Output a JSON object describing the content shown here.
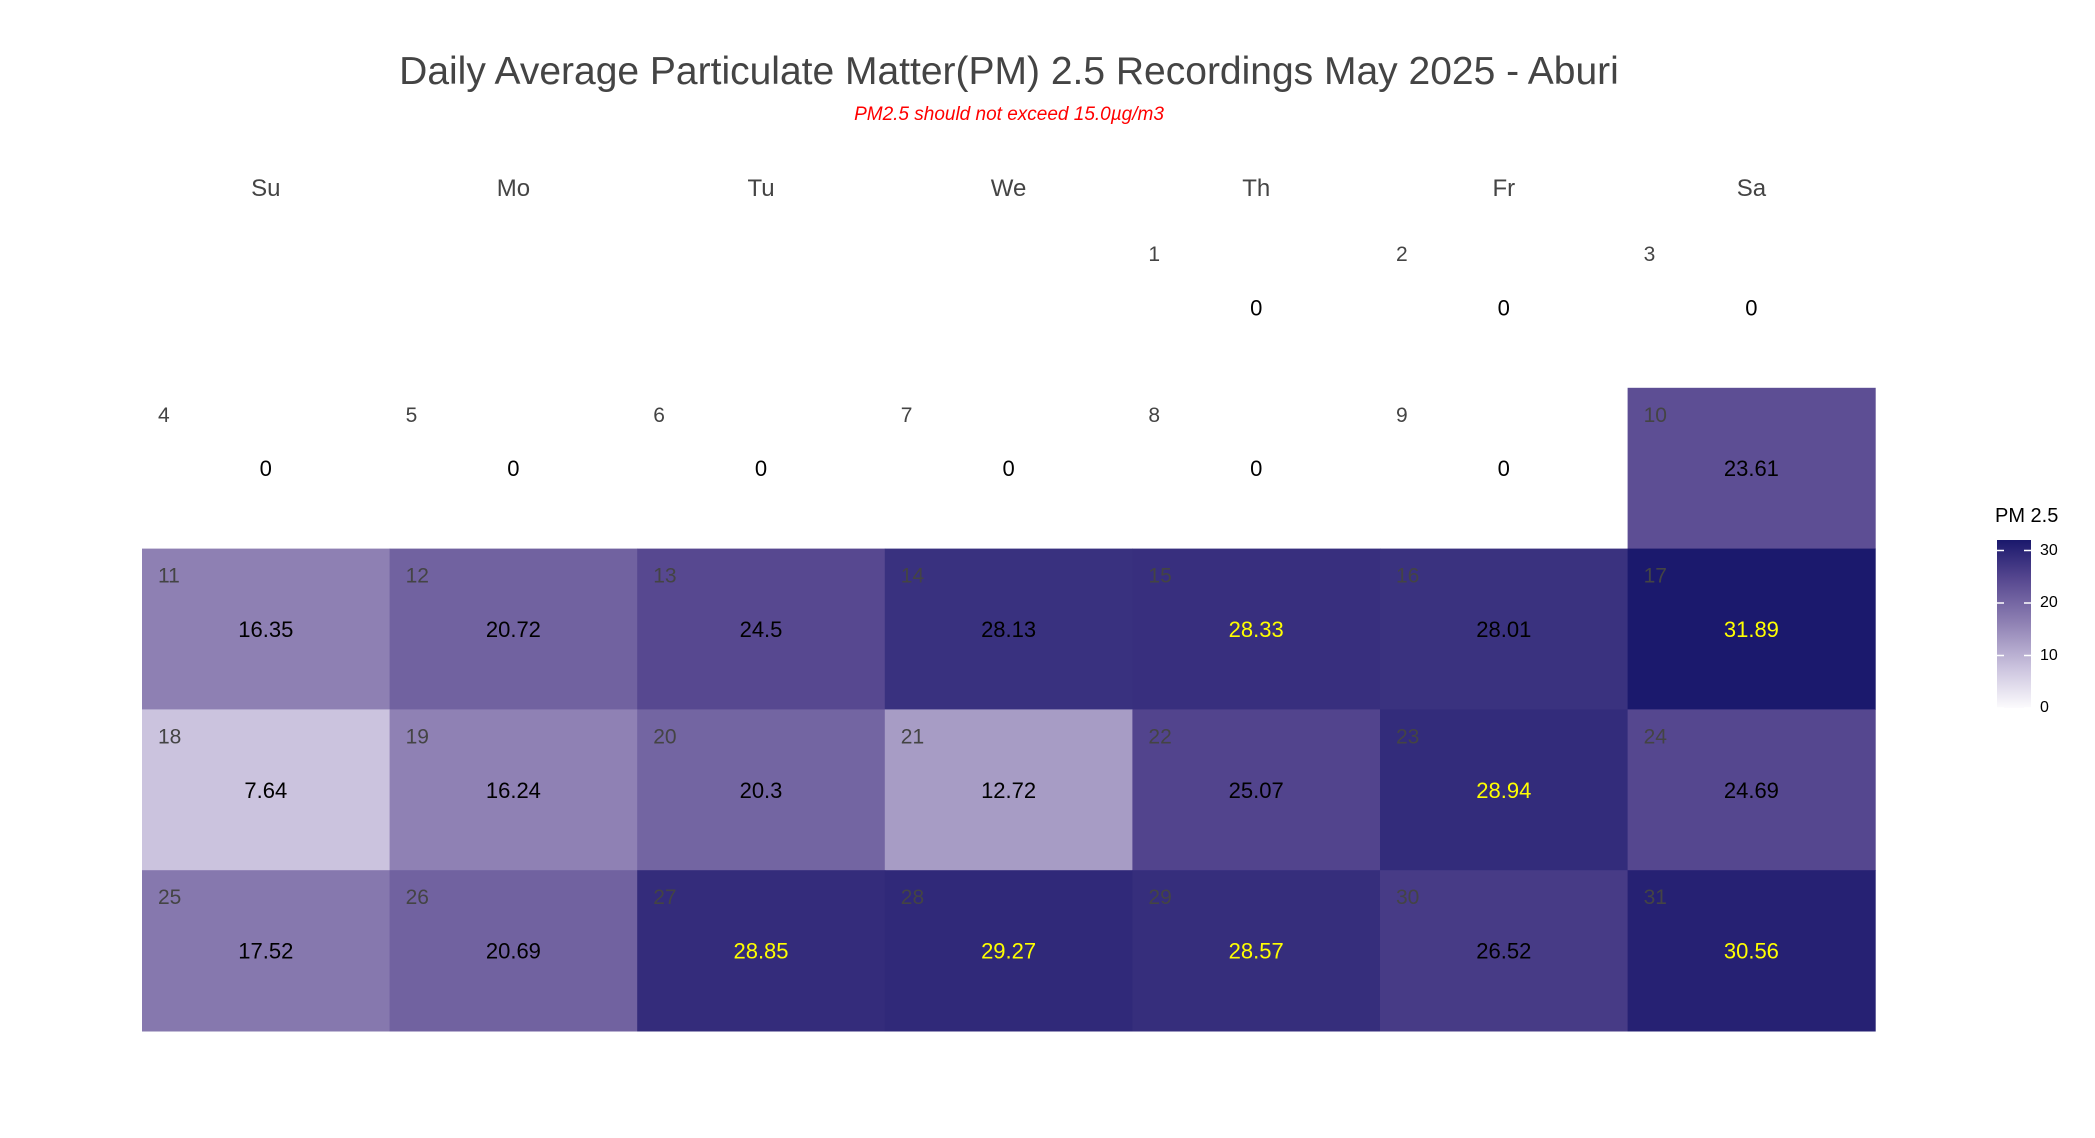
{
  "chart_data": {
    "type": "heatmap",
    "title": "Daily Average Particulate Matter(PM) 2.5 Recordings May 2025 -  Aburi",
    "subtitle": "PM2.5 should not exceed 15.0µg/m3",
    "weekdays": [
      "Su",
      "Mo",
      "Tu",
      "We",
      "Th",
      "Fr",
      "Sa"
    ],
    "first_weekday_index": 4,
    "days": [
      1,
      2,
      3,
      4,
      5,
      6,
      7,
      8,
      9,
      10,
      11,
      12,
      13,
      14,
      15,
      16,
      17,
      18,
      19,
      20,
      21,
      22,
      23,
      24,
      25,
      26,
      27,
      28,
      29,
      30,
      31
    ],
    "values": [
      0,
      0,
      0,
      0,
      0,
      0,
      0,
      0,
      0,
      23.61,
      16.35,
      20.72,
      24.5,
      28.13,
      28.33,
      28.01,
      31.89,
      7.64,
      16.24,
      20.3,
      12.72,
      25.07,
      28.94,
      24.69,
      17.52,
      20.69,
      28.85,
      29.27,
      28.57,
      26.52,
      30.56
    ],
    "value_labels": [
      "0",
      "0",
      "0",
      "0",
      "0",
      "0",
      "0",
      "0",
      "0",
      "23.61",
      "16.35",
      "20.72",
      "24.5",
      "28.13",
      "28.33",
      "28.01",
      "31.89",
      "7.64",
      "16.24",
      "20.3",
      "12.72",
      "25.07",
      "28.94",
      "24.69",
      "17.52",
      "20.69",
      "28.85",
      "29.27",
      "28.57",
      "26.52",
      "30.56"
    ],
    "highlight_color": "#ffff00",
    "legend": {
      "title": "PM 2.5",
      "ticks": [
        "0",
        "10",
        "20",
        "30"
      ],
      "tick_values": [
        0,
        10,
        20,
        30
      ],
      "range": [
        0,
        32
      ],
      "low_color": "#ffffff",
      "high_color": "#1a186c",
      "position": "right"
    }
  }
}
